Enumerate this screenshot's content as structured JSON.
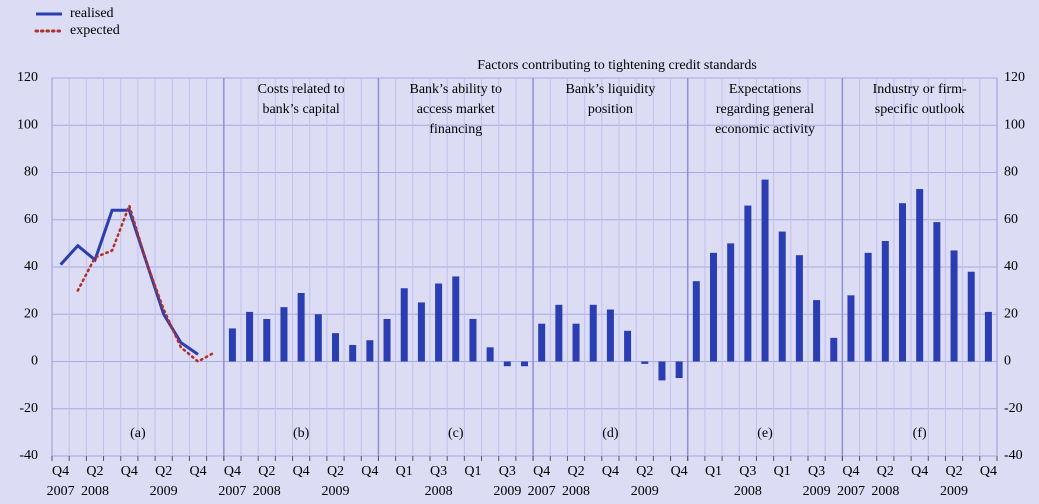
{
  "title": "Factors contributing to tightening credit standards",
  "chart_data": [
    {
      "type": "line",
      "label": "(a)",
      "categories": [
        "Q4",
        null,
        "Q2",
        null,
        "Q4",
        null,
        "Q2",
        null,
        "Q4",
        null
      ],
      "years": [
        "2007",
        null,
        "2008",
        null,
        null,
        null,
        "2009",
        null,
        null,
        null
      ],
      "series": [
        {
          "name": "realised",
          "color": "#2a3eb1",
          "style": "solid",
          "values": [
            41,
            49,
            43,
            64,
            64,
            42,
            20,
            8,
            3,
            null
          ]
        },
        {
          "name": "expected",
          "color": "#b0302c",
          "style": "dotted",
          "values": [
            null,
            30,
            44,
            47,
            66,
            42,
            22,
            6,
            0,
            4
          ]
        }
      ],
      "ylim": [
        -40,
        120
      ],
      "yticks": [
        -40,
        -20,
        0,
        20,
        40,
        60,
        80,
        100,
        120
      ],
      "grid": true
    },
    {
      "type": "bar",
      "label": "(b)",
      "title": [
        "Costs related to",
        "bank’s capital"
      ],
      "color": "#2a3eb1",
      "categories": [
        "Q4",
        null,
        "Q2",
        null,
        "Q4",
        null,
        "Q2",
        null,
        "Q4"
      ],
      "years": [
        "2007",
        null,
        "2008",
        null,
        null,
        null,
        "2009",
        null,
        null
      ],
      "values": [
        14,
        21,
        18,
        23,
        29,
        20,
        12,
        7,
        9
      ]
    },
    {
      "type": "bar",
      "label": "(c)",
      "title": [
        "Bank’s ability to",
        "access market",
        "financing"
      ],
      "color": "#2a3eb1",
      "categories": [
        null,
        "Q1",
        null,
        "Q3",
        null,
        "Q1",
        null,
        "Q3",
        null
      ],
      "years": [
        null,
        null,
        null,
        "2008",
        null,
        null,
        null,
        "2009",
        null
      ],
      "values": [
        18,
        31,
        25,
        33,
        36,
        18,
        6,
        -2,
        -2
      ]
    },
    {
      "type": "bar",
      "label": "(d)",
      "title": [
        "Bank’s liquidity",
        "position"
      ],
      "color": "#2a3eb1",
      "categories": [
        "Q4",
        null,
        "Q2",
        null,
        "Q4",
        null,
        "Q2",
        null,
        "Q4"
      ],
      "years": [
        "2007",
        null,
        "2008",
        null,
        null,
        null,
        "2009",
        null,
        null
      ],
      "values": [
        16,
        24,
        16,
        24,
        22,
        13,
        -1,
        -8,
        -7
      ]
    },
    {
      "type": "bar",
      "label": "(e)",
      "title": [
        "Expectations",
        "regarding general",
        "economic activity"
      ],
      "color": "#2a3eb1",
      "categories": [
        null,
        "Q1",
        null,
        "Q3",
        null,
        "Q1",
        null,
        "Q3",
        null
      ],
      "years": [
        null,
        null,
        null,
        "2008",
        null,
        null,
        null,
        "2009",
        null
      ],
      "values": [
        34,
        46,
        50,
        66,
        77,
        55,
        45,
        26,
        10
      ]
    },
    {
      "type": "bar",
      "label": "(f)",
      "title": [
        "Industry or firm-",
        "specific outlook"
      ],
      "color": "#2a3eb1",
      "categories": [
        "Q4",
        null,
        "Q2",
        null,
        "Q4",
        null,
        "Q2",
        null,
        "Q4"
      ],
      "years": [
        "2007",
        null,
        "2008",
        null,
        null,
        null,
        "2009",
        null,
        null
      ],
      "values": [
        28,
        46,
        51,
        67,
        73,
        59,
        47,
        38,
        21
      ],
      "y2lim": [
        -40,
        120
      ],
      "y2ticks": [
        -40,
        -20,
        0,
        20,
        40,
        60,
        80,
        100,
        120
      ]
    }
  ]
}
